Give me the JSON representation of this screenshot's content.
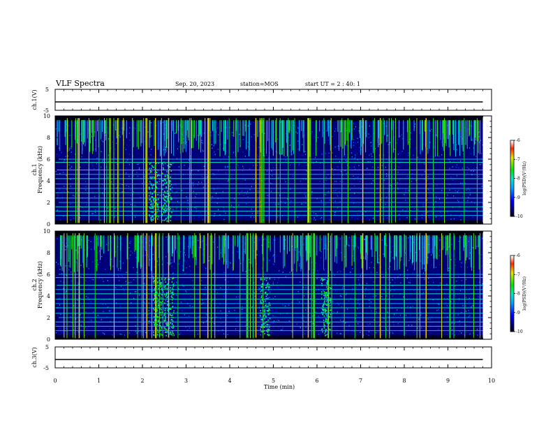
{
  "header": {
    "title": "VLF Spectra",
    "date": "Sep. 20, 2023",
    "station": "station=MOS",
    "start": "start UT =  2 : 40: 1"
  },
  "chart_data": [
    {
      "type": "line",
      "name": "waveform-ch1",
      "ylabel": "ch.1(V)",
      "ylim": [
        -5,
        5
      ],
      "yticks": [
        "5",
        "-5"
      ],
      "x": [
        0,
        9.8
      ],
      "y": [
        -1,
        -1
      ]
    },
    {
      "type": "heatmap",
      "name": "spectrogram-ch1",
      "ylabel": "ch.1\nFrequency (kHz)",
      "ylabel_lines": [
        "ch.1",
        "Frequency (kHz)"
      ],
      "ylim": [
        0,
        10
      ],
      "yticks": [
        "0",
        "2",
        "4",
        "6",
        "8",
        "10"
      ],
      "xlim": [
        0,
        10
      ],
      "data_extent_min": 9.8,
      "colorbar": {
        "label": "log(PSD)(V²/Hz)",
        "ticks": [
          "-6",
          "-7",
          "-8",
          "-9",
          "-10"
        ],
        "range": [
          -10,
          -6
        ]
      },
      "noise_bursts_min": [
        2.25,
        2.55
      ],
      "strong_sferics_min": [
        0.55,
        2.1,
        2.3,
        2.6,
        3.5,
        4.6,
        5.8,
        7.05,
        7.45,
        8.5
      ]
    },
    {
      "type": "heatmap",
      "name": "spectrogram-ch2",
      "ylabel": "ch.2\nFrequency (kHz)",
      "ylabel_lines": [
        "ch.2",
        "Frequency (kHz)"
      ],
      "ylim": [
        0,
        10
      ],
      "yticks": [
        "0",
        "2",
        "4",
        "6",
        "8",
        "10"
      ],
      "xlim": [
        0,
        10
      ],
      "data_extent_min": 9.8,
      "colorbar": {
        "label": "log(PSD)(V²/Hz)",
        "ticks": [
          "-6",
          "-7",
          "-8",
          "-9",
          "-10"
        ],
        "range": [
          -10,
          -6
        ]
      },
      "noise_bursts_min": [
        2.35,
        2.6,
        4.8,
        6.2
      ],
      "strong_sferics_min": [
        0.55,
        2.1,
        2.3,
        2.6,
        3.5,
        4.6,
        5.8,
        7.05,
        7.45,
        8.5
      ]
    },
    {
      "type": "line",
      "name": "waveform-ch3",
      "ylabel": "ch.3(V)",
      "ylim": [
        -5,
        5
      ],
      "yticks": [
        "5",
        "-5"
      ],
      "x": [
        0,
        9.8
      ],
      "y": [
        -1,
        -1
      ]
    }
  ],
  "xaxis": {
    "label": "Time (min)",
    "ticks": [
      "0",
      "1",
      "2",
      "3",
      "4",
      "5",
      "6",
      "7",
      "8",
      "9",
      "10"
    ],
    "xlim": [
      0,
      10
    ]
  }
}
